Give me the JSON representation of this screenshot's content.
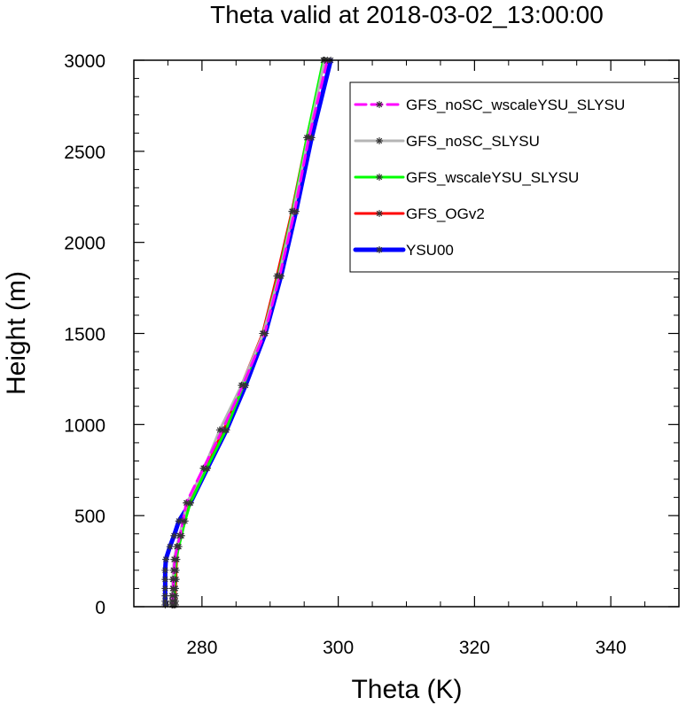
{
  "chart_data": {
    "type": "line",
    "title": "Theta valid at 2018-03-02_13:00:00",
    "xlabel": "Theta (K)",
    "ylabel": "Height (m)",
    "xlim": [
      270,
      350
    ],
    "ylim": [
      0,
      3000
    ],
    "xticks": [
      280,
      300,
      320,
      340
    ],
    "xtick_labels": [
      "280",
      "300",
      "320",
      "340"
    ],
    "yticks": [
      0,
      500,
      1000,
      1500,
      2000,
      2500,
      3000
    ],
    "ytick_labels": [
      "0",
      "500",
      "1000",
      "1500",
      "2000",
      "2500",
      "3000"
    ],
    "legend_position": "top-right",
    "grid": false,
    "series": [
      {
        "name": "GFS_noSC_wscaleYSU_SLYSU",
        "color": "#ff00ff",
        "dash": "dashed",
        "width": 3,
        "marker": "star",
        "points": [
          [
            275.7,
            10
          ],
          [
            275.7,
            30
          ],
          [
            275.7,
            60
          ],
          [
            275.8,
            100
          ],
          [
            275.8,
            150
          ],
          [
            275.9,
            200
          ],
          [
            276.0,
            260
          ],
          [
            276.4,
            330
          ],
          [
            276.8,
            390
          ],
          [
            277.2,
            470
          ],
          [
            277.7,
            570
          ],
          [
            280.2,
            760
          ],
          [
            283.0,
            970
          ],
          [
            286.0,
            1215
          ],
          [
            289.2,
            1500
          ],
          [
            291.4,
            1815
          ],
          [
            293.6,
            2170
          ],
          [
            295.7,
            2575
          ],
          [
            298.4,
            3000
          ]
        ]
      },
      {
        "name": "GFS_noSC_SLYSU",
        "color": "#b5b5b5",
        "dash": "solid",
        "width": 3,
        "marker": "star",
        "points": [
          [
            275.6,
            10
          ],
          [
            275.6,
            30
          ],
          [
            275.6,
            60
          ],
          [
            275.7,
            100
          ],
          [
            275.7,
            150
          ],
          [
            275.8,
            200
          ],
          [
            275.9,
            260
          ],
          [
            276.3,
            330
          ],
          [
            276.7,
            390
          ],
          [
            277.2,
            470
          ],
          [
            277.8,
            570
          ],
          [
            280.3,
            760
          ],
          [
            282.6,
            970
          ],
          [
            285.8,
            1215
          ],
          [
            289.0,
            1500
          ],
          [
            291.3,
            1815
          ],
          [
            293.4,
            2170
          ],
          [
            295.6,
            2575
          ],
          [
            298.0,
            3000
          ]
        ]
      },
      {
        "name": "GFS_wscaleYSU_SLYSU",
        "color": "#00ff00",
        "dash": "solid",
        "width": 3,
        "marker": "star",
        "points": [
          [
            275.9,
            10
          ],
          [
            275.9,
            30
          ],
          [
            275.9,
            60
          ],
          [
            276.0,
            100
          ],
          [
            276.0,
            150
          ],
          [
            276.1,
            200
          ],
          [
            276.2,
            260
          ],
          [
            276.6,
            330
          ],
          [
            277.0,
            390
          ],
          [
            277.5,
            470
          ],
          [
            278.3,
            570
          ],
          [
            280.7,
            760
          ],
          [
            283.5,
            970
          ],
          [
            286.1,
            1215
          ],
          [
            289.0,
            1500
          ],
          [
            291.2,
            1815
          ],
          [
            293.3,
            2170
          ],
          [
            295.4,
            2575
          ],
          [
            297.8,
            3000
          ]
        ]
      },
      {
        "name": "GFS_OGv2",
        "color": "#ff0000",
        "dash": "solid",
        "width": 3,
        "marker": "star",
        "points": [
          [
            276.1,
            10
          ],
          [
            276.1,
            30
          ],
          [
            276.1,
            60
          ],
          [
            276.1,
            100
          ],
          [
            276.2,
            150
          ],
          [
            276.2,
            200
          ],
          [
            276.3,
            260
          ],
          [
            276.5,
            330
          ],
          [
            276.9,
            390
          ],
          [
            277.3,
            470
          ],
          [
            278.2,
            570
          ],
          [
            280.4,
            760
          ],
          [
            283.2,
            970
          ],
          [
            285.8,
            1215
          ],
          [
            288.9,
            1500
          ],
          [
            291.0,
            1815
          ],
          [
            293.2,
            2170
          ],
          [
            295.4,
            2575
          ],
          [
            297.9,
            3000
          ]
        ]
      },
      {
        "name": "YSU00",
        "color": "#0000ff",
        "dash": "solid",
        "width": 5,
        "marker": "star",
        "points": [
          [
            274.6,
            10
          ],
          [
            274.6,
            30
          ],
          [
            274.6,
            60
          ],
          [
            274.6,
            100
          ],
          [
            274.6,
            150
          ],
          [
            274.6,
            200
          ],
          [
            274.7,
            260
          ],
          [
            275.3,
            330
          ],
          [
            275.9,
            390
          ],
          [
            276.6,
            470
          ],
          [
            278.3,
            570
          ],
          [
            280.8,
            760
          ],
          [
            283.6,
            970
          ],
          [
            286.4,
            1215
          ],
          [
            289.3,
            1500
          ],
          [
            291.6,
            1815
          ],
          [
            293.8,
            2170
          ],
          [
            296.1,
            2575
          ],
          [
            298.9,
            3000
          ]
        ]
      }
    ]
  }
}
